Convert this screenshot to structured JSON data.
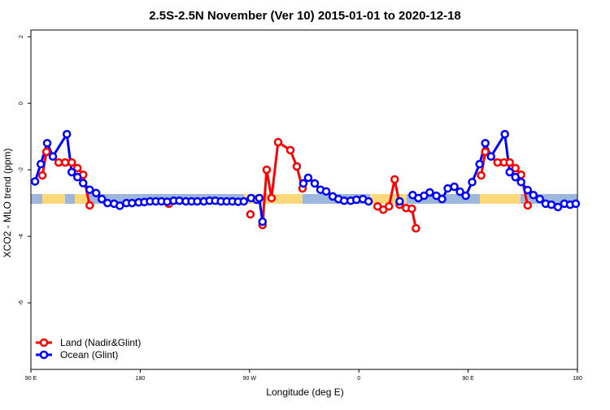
{
  "chart_data": {
    "type": "line",
    "title": "2.5S-2.5N November (Ver 10)   2015-01-01 to 2020-12-18",
    "xlabel": "Longitude (deg E)",
    "ylabel": "XCO2 - MLO trend (ppm)",
    "xlim": [
      90,
      540
    ],
    "xticks": [
      {
        "value": 90,
        "label": "90 E"
      },
      180,
      {
        "value": 270,
        "label": "90 W"
      },
      {
        "value": 360,
        "label": "0"
      },
      {
        "value": 450,
        "label": "90 E"
      },
      {
        "value": 540,
        "label": "180"
      }
    ],
    "ylim": [
      -8,
      2.2
    ],
    "yticks": [
      -6,
      -4,
      -2,
      0,
      2
    ],
    "legend": "bottom-left",
    "series": [
      {
        "name": "Land (Nadir&Glint)",
        "color": "#ff0000",
        "x": [
          99.4,
          102.8,
          112.8,
          118.2,
          123.6,
          128.3,
          133,
          138.4,
          null,
          203.5,
          null,
          270.7,
          null,
          280.7,
          284.1,
          288.1,
          293.5,
          303.6,
          308.9,
          313.6,
          null,
          375.4,
          380.1,
          384.8,
          389.5,
          393.6,
          398.9,
          403.6,
          407,
          null,
          460.7,
          464.1,
          474.2,
          479.5,
          484.2,
          488.9,
          493.6,
          499
        ],
        "values": [
          -2.17,
          -1.46,
          -1.78,
          -1.78,
          -1.78,
          -1.95,
          -2.15,
          -3.07,
          null,
          -3.02,
          null,
          -3.34,
          null,
          -3.66,
          -2.0,
          -2.85,
          -1.17,
          -1.41,
          -1.9,
          -2.56,
          null,
          -3.1,
          -3.2,
          -3.1,
          -2.29,
          -3.05,
          -3.15,
          -3.17,
          -3.76,
          null,
          -2.17,
          -1.46,
          -1.78,
          -1.78,
          -1.78,
          -1.95,
          -2.15,
          -3.07
        ]
      },
      {
        "name": "Ocean (Glint)",
        "color": "#0000ff",
        "x": [
          93.4,
          98.1,
          103.4,
          108.1,
          119.6,
          123.6,
          128.3,
          133,
          138.4,
          143.7,
          148.4,
          153.1,
          158.5,
          163.2,
          168.6,
          173.3,
          178.7,
          183.4,
          188.1,
          192.8,
          197.5,
          202.2,
          207.5,
          212.2,
          217.6,
          222.3,
          227,
          232.4,
          237.1,
          241.8,
          246.5,
          251.2,
          255.9,
          260.6,
          265.3,
          271.3,
          276,
          278,
          280.7,
          null,
          314.3,
          318.3,
          323.7,
          328.4,
          333.1,
          338.5,
          343.2,
          347.9,
          353.3,
          358,
          363.3,
          368,
          null,
          393.6,
          null,
          404.3,
          409,
          413.7,
          418.4,
          423.8,
          428.5,
          433.2,
          438.6,
          443.3,
          448,
          453.3,
          459.4,
          464.1,
          468.8,
          480.2,
          484.2,
          488.9,
          493.6,
          499,
          503.7,
          509,
          513.8,
          518.5,
          523.9,
          529.2,
          533.9,
          538.6
        ],
        "values": [
          -2.35,
          -1.83,
          -1.2,
          -1.6,
          -0.93,
          -2.07,
          -2.22,
          -2.4,
          -2.6,
          -2.7,
          -2.88,
          -3.0,
          -3.02,
          -3.08,
          -3.0,
          -3.0,
          -2.98,
          -2.97,
          -2.95,
          -2.95,
          -2.95,
          -2.96,
          -2.93,
          -2.93,
          -2.95,
          -2.95,
          -2.95,
          -2.95,
          -2.93,
          -2.93,
          -2.95,
          -2.95,
          -2.95,
          -2.96,
          -2.95,
          -2.85,
          -2.9,
          -2.85,
          -3.56,
          null,
          -2.41,
          -2.24,
          -2.41,
          -2.6,
          -2.65,
          -2.8,
          -2.88,
          -2.93,
          -2.93,
          -2.9,
          -2.88,
          -2.95,
          null,
          -2.95,
          null,
          -2.76,
          -2.85,
          -2.78,
          -2.68,
          -2.78,
          -2.88,
          -2.56,
          -2.51,
          -2.66,
          -2.78,
          -2.37,
          -1.83,
          -1.2,
          -1.6,
          -0.93,
          -2.07,
          -2.22,
          -2.37,
          -2.61,
          -2.76,
          -2.88,
          -3.02,
          -3.05,
          -3.12,
          -3.02,
          -3.05,
          -3.02
        ]
      }
    ]
  }
}
